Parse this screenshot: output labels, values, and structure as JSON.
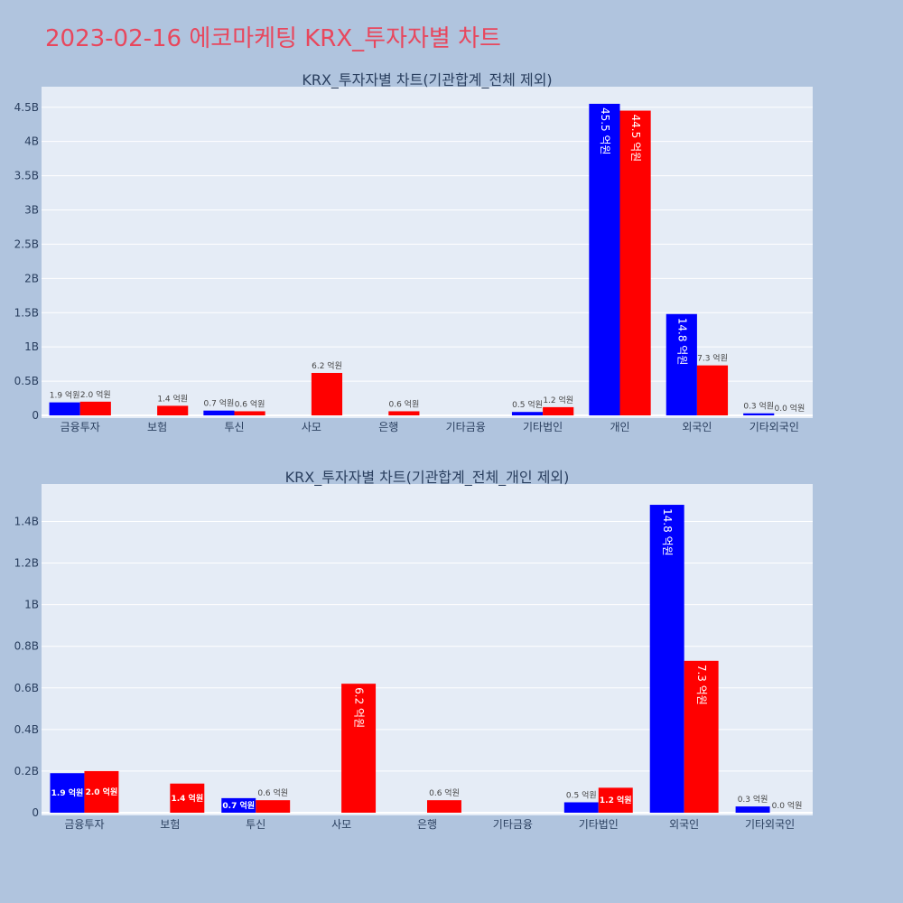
{
  "page_title": "2023-02-16 에코마케팅 KRX_투자자별 차트",
  "colors": {
    "buy": "#0000ff",
    "sell": "#ff0000",
    "plot_bg": "#e5ecf6",
    "page_bg": "#b0c4de",
    "title": "#e8475d"
  },
  "chart_data": [
    {
      "type": "bar",
      "title": "KRX_투자자별 차트(기관합계_전체 제외)",
      "categories": [
        "금융투자",
        "보험",
        "투신",
        "사모",
        "은행",
        "기타금융",
        "기타법인",
        "개인",
        "외국인",
        "기타외국인"
      ],
      "series": [
        {
          "values": [
            0.19,
            0,
            0.07,
            0,
            0,
            0,
            0.05,
            4.55,
            1.48,
            0.03
          ],
          "labels": [
            "1.9 억원",
            "",
            "0.7 억원",
            "",
            "",
            "",
            "0.5 억원",
            "45.5 억원",
            "14.8 억원",
            "0.3 억원"
          ]
        },
        {
          "values": [
            0.2,
            0.14,
            0.06,
            0.62,
            0.06,
            0,
            0.12,
            4.45,
            0.73,
            0.0
          ],
          "labels": [
            "2.0 억원",
            "1.4 억원",
            "0.6 억원",
            "6.2 억원",
            "0.6 억원",
            "",
            "1.2 억원",
            "44.5 억원",
            "7.3 억원",
            "0.0 억원"
          ]
        }
      ],
      "ylim": [
        0,
        4.8
      ],
      "yticks": [
        0,
        0.5,
        1,
        1.5,
        2,
        2.5,
        3,
        3.5,
        4,
        4.5
      ],
      "ytick_labels": [
        "0",
        "0.5B",
        "1B",
        "1.5B",
        "2B",
        "2.5B",
        "3B",
        "3.5B",
        "4B",
        "4.5B"
      ],
      "grid": true
    },
    {
      "type": "bar",
      "title": "KRX_투자자별 차트(기관합계_전체_개인 제외)",
      "categories": [
        "금융투자",
        "보험",
        "투신",
        "사모",
        "은행",
        "기타금융",
        "기타법인",
        "외국인",
        "기타외국인"
      ],
      "series": [
        {
          "values": [
            0.19,
            0,
            0.07,
            0,
            0,
            0,
            0.05,
            1.48,
            0.03
          ],
          "labels": [
            "1.9 억원",
            "",
            "0.7 억원",
            "",
            "",
            "",
            "0.5 억원",
            "14.8 억원",
            "0.3 억원"
          ]
        },
        {
          "values": [
            0.2,
            0.14,
            0.06,
            0.62,
            0.06,
            0,
            0.12,
            0.73,
            0.0
          ],
          "labels": [
            "2.0 억원",
            "1.4 억원",
            "0.6 억원",
            "6.2 억원",
            "0.6 억원",
            "",
            "1.2 억원",
            "7.3 억원",
            "0.0 억원"
          ]
        }
      ],
      "ylim": [
        0,
        1.58
      ],
      "yticks": [
        0,
        0.2,
        0.4,
        0.6,
        0.8,
        1,
        1.2,
        1.4
      ],
      "ytick_labels": [
        "0",
        "0.2B",
        "0.4B",
        "0.6B",
        "0.8B",
        "1B",
        "1.2B",
        "1.4B"
      ],
      "grid": true
    }
  ]
}
